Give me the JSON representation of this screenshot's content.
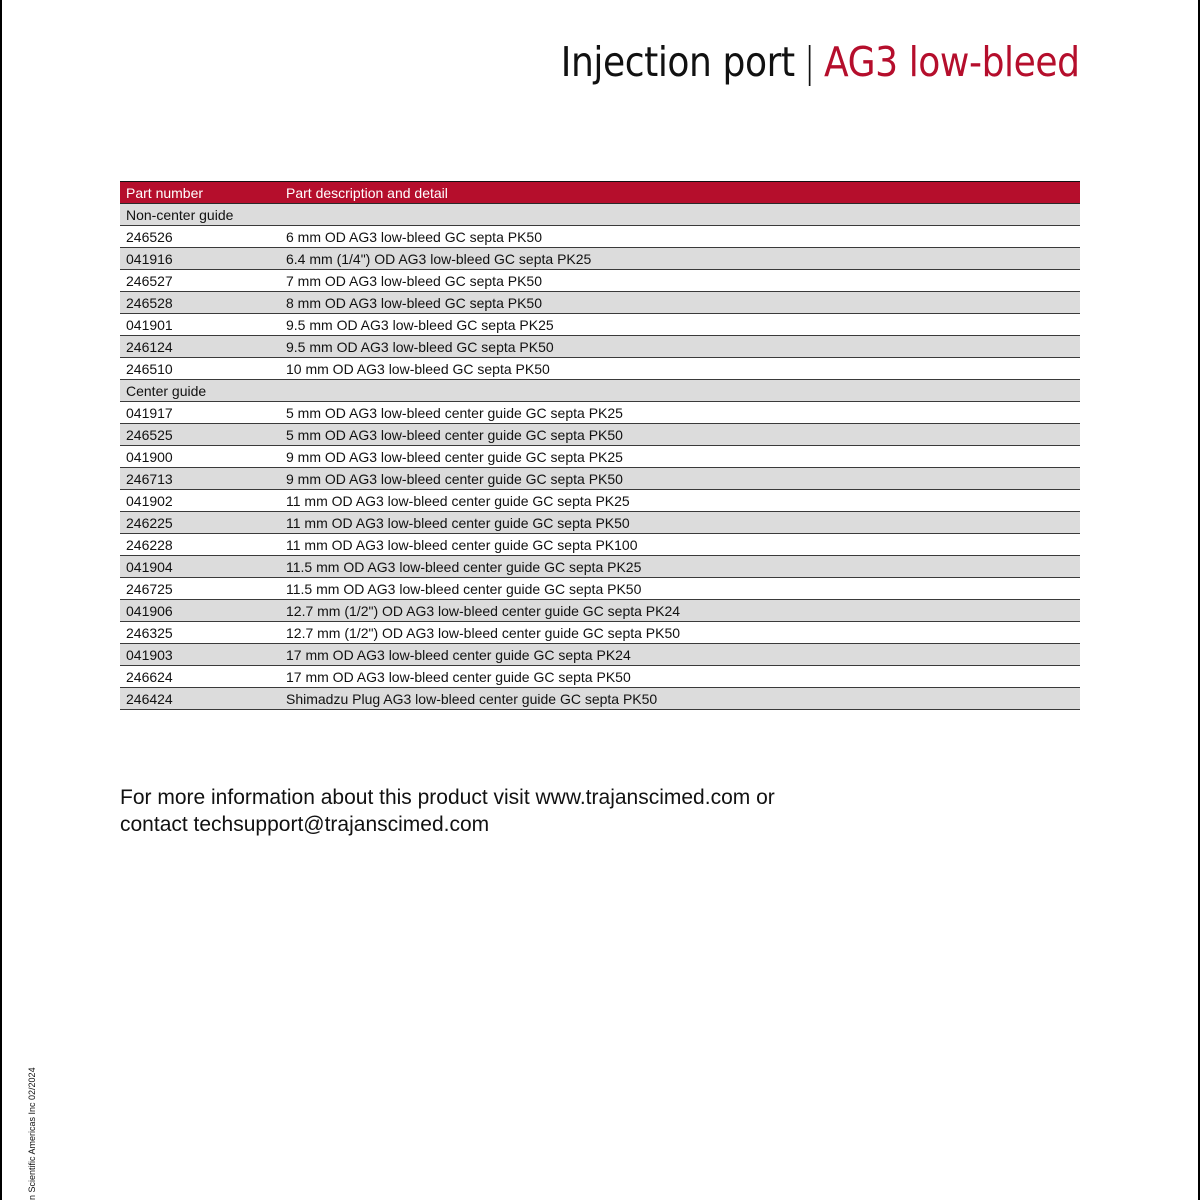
{
  "title": {
    "main": "Injection port",
    "separator": "|",
    "accent": "AG3 low-bleed",
    "accent_color": "#b50e2c"
  },
  "table": {
    "header_color": "#b50e2c",
    "columns": [
      "Part number",
      "Part description and detail"
    ],
    "sections": [
      {
        "label": "Non-center guide",
        "rows": [
          {
            "part": "246526",
            "desc": "6 mm OD AG3 low-bleed GC septa PK50"
          },
          {
            "part": "041916",
            "desc": "6.4 mm (1/4\") OD AG3 low-bleed GC septa PK25"
          },
          {
            "part": "246527",
            "desc": "7 mm OD AG3 low-bleed GC septa PK50"
          },
          {
            "part": "246528",
            "desc": "8 mm OD AG3 low-bleed GC septa PK50"
          },
          {
            "part": "041901",
            "desc": "9.5 mm OD AG3 low-bleed GC septa PK25"
          },
          {
            "part": "246124",
            "desc": "9.5 mm OD AG3 low-bleed GC septa PK50"
          },
          {
            "part": "246510",
            "desc": "10 mm OD AG3 low-bleed GC septa PK50"
          }
        ]
      },
      {
        "label": "Center guide",
        "rows": [
          {
            "part": "041917",
            "desc": "5 mm OD AG3 low-bleed center guide GC septa PK25"
          },
          {
            "part": "246525",
            "desc": "5 mm OD AG3 low-bleed center guide GC septa PK50"
          },
          {
            "part": "041900",
            "desc": "9 mm OD AG3 low-bleed center guide GC septa PK25"
          },
          {
            "part": "246713",
            "desc": "9 mm OD AG3 low-bleed center guide GC septa PK50"
          },
          {
            "part": "041902",
            "desc": "11 mm OD AG3 low-bleed center guide GC septa PK25"
          },
          {
            "part": "246225",
            "desc": "11 mm OD AG3 low-bleed center guide GC septa PK50"
          },
          {
            "part": "246228",
            "desc": "11 mm OD AG3 low-bleed center guide GC septa PK100"
          },
          {
            "part": "041904",
            "desc": "11.5 mm OD AG3 low-bleed center guide GC septa PK25"
          },
          {
            "part": "246725",
            "desc": "11.5 mm OD AG3 low-bleed center guide GC septa PK50"
          },
          {
            "part": "041906",
            "desc": "12.7 mm (1/2\") OD AG3 low-bleed center guide GC septa PK24"
          },
          {
            "part": "246325",
            "desc": "12.7 mm (1/2\") OD AG3 low-bleed center guide GC septa PK50"
          },
          {
            "part": "041903",
            "desc": "17 mm OD AG3 low-bleed center guide GC septa PK24"
          },
          {
            "part": "246624",
            "desc": "17 mm OD AG3 low-bleed center guide GC septa PK50"
          },
          {
            "part": "246424",
            "desc": "Shimadzu Plug AG3 low-bleed center guide GC septa PK50"
          }
        ]
      }
    ]
  },
  "footer": {
    "line1": "For more information about this product visit www.trajanscimed.com or",
    "line2": "contact techsupport@trajanscimed.com"
  },
  "side_note": "n Scientific Americas Inc 02/2024"
}
